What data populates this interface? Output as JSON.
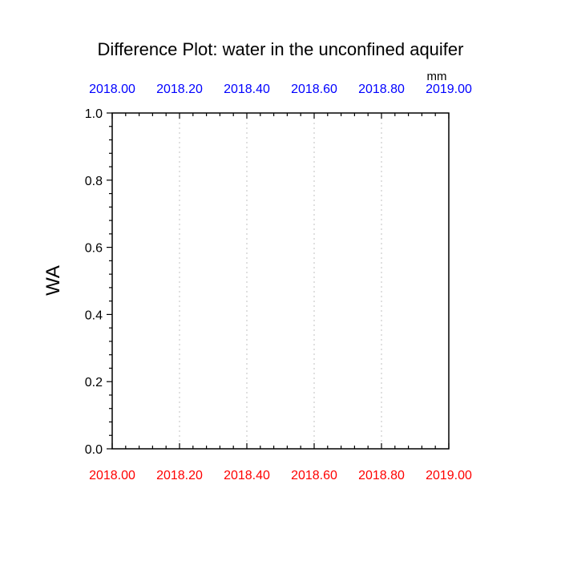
{
  "chart_data": {
    "type": "line",
    "title": "Difference Plot: water in the unconfined aquifer",
    "ylabel": "WA",
    "units": "mm",
    "xlim": [
      2018.0,
      2019.0
    ],
    "ylim": [
      0.0,
      1.0
    ],
    "x_ticks": [
      2018.0,
      2018.2,
      2018.4,
      2018.6,
      2018.8,
      2019.0
    ],
    "x_tick_labels_bottom": [
      "2018.00",
      "2018.20",
      "2018.40",
      "2018.60",
      "2018.80",
      "2019.00"
    ],
    "x_tick_labels_top": [
      "2018.00",
      "2018.20",
      "2018.40",
      "2018.60",
      "2018.80",
      "2019.00"
    ],
    "y_ticks": [
      0.0,
      0.2,
      0.4,
      0.6,
      0.8,
      1.0
    ],
    "y_tick_labels": [
      "0.0",
      "0.2",
      "0.4",
      "0.6",
      "0.8",
      "1.0"
    ],
    "x_minor_per_major": 4,
    "y_minor_per_major": 4,
    "grid": "vertical dotted at major x ticks",
    "series": [],
    "colors": {
      "bottom_axis_labels": "#ff0000",
      "top_axis_labels": "#0000ff",
      "grid": "#c0c0c0",
      "axes": "#000000"
    }
  }
}
